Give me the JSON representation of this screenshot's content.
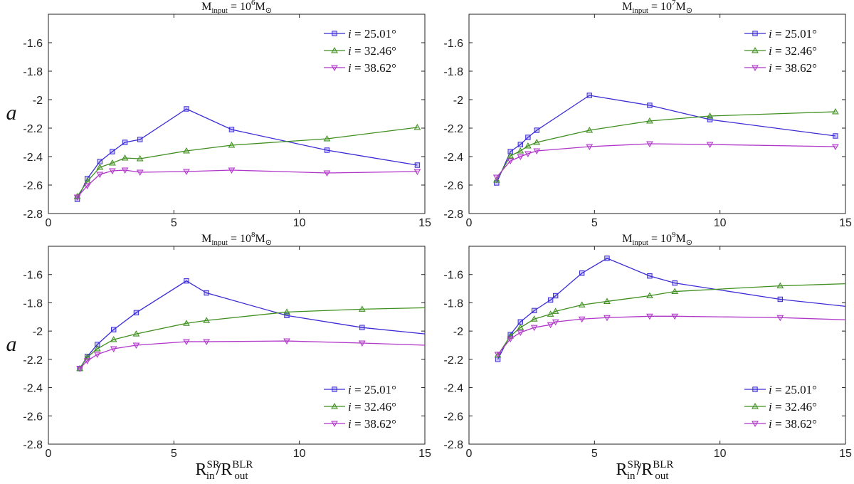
{
  "chart_data": [
    {
      "type": "line",
      "title": {
        "prefix": "M",
        "sub": "input",
        "eq": " = 10",
        "sup": "6",
        "unit": "M",
        "unit_sub": "⊙"
      },
      "ylabel": "a",
      "xlabel": {
        "num": "R",
        "num_sub": "in",
        "num_sup": "SR",
        "sep": "/",
        "den": "R",
        "den_sub": "out",
        "den_sup": "BLR"
      },
      "show_xlabel": false,
      "xlim": [
        0,
        15
      ],
      "ylim": [
        -2.8,
        -1.4
      ],
      "xticks": [
        "0",
        "5",
        "10",
        "15"
      ],
      "yticks": [
        "-2.8",
        "-2.6",
        "-2.4",
        "-2.2",
        "-2",
        "-1.8",
        "-1.6"
      ],
      "legend_position": "top-right",
      "series": [
        {
          "name": "i = 25.01°",
          "symbol": "i",
          "label": " = 25.01°",
          "color": "#3b2bd6",
          "marker": "square",
          "x": [
            1.15,
            1.55,
            2.05,
            2.55,
            3.05,
            3.65,
            5.5,
            7.3,
            11.1,
            14.7
          ],
          "y": [
            -2.7,
            -2.555,
            -2.435,
            -2.365,
            -2.3,
            -2.28,
            -2.065,
            -2.21,
            -2.355,
            -2.46
          ]
        },
        {
          "name": "i = 32.46°",
          "symbol": "i",
          "label": " = 32.46°",
          "color": "#3f8f1f",
          "marker": "triangle-up",
          "x": [
            1.15,
            1.55,
            2.05,
            2.55,
            3.05,
            3.65,
            5.5,
            7.3,
            11.1,
            14.7
          ],
          "y": [
            -2.68,
            -2.575,
            -2.475,
            -2.445,
            -2.41,
            -2.415,
            -2.36,
            -2.32,
            -2.275,
            -2.195
          ]
        },
        {
          "name": "i = 38.62°",
          "symbol": "i",
          "label": " = 38.62°",
          "color": "#b035c9",
          "marker": "triangle-down",
          "x": [
            1.15,
            1.55,
            2.05,
            2.55,
            3.05,
            3.65,
            5.5,
            7.3,
            11.1,
            14.7
          ],
          "y": [
            -2.685,
            -2.605,
            -2.525,
            -2.5,
            -2.495,
            -2.51,
            -2.505,
            -2.495,
            -2.515,
            -2.505
          ]
        }
      ]
    },
    {
      "type": "line",
      "title": {
        "prefix": "M",
        "sub": "input",
        "eq": " = 10",
        "sup": "7",
        "unit": "M",
        "unit_sub": "⊙"
      },
      "ylabel": "",
      "xlabel": {
        "num": "R",
        "num_sub": "in",
        "num_sup": "SR",
        "sep": "/",
        "den": "R",
        "den_sub": "out",
        "den_sup": "BLR"
      },
      "show_xlabel": false,
      "xlim": [
        0,
        15
      ],
      "ylim": [
        -2.8,
        -1.4
      ],
      "xticks": [
        "0",
        "5",
        "10",
        "15"
      ],
      "yticks": [
        "-2.8",
        "-2.6",
        "-2.4",
        "-2.2",
        "-2",
        "-1.8",
        "-1.6"
      ],
      "legend_position": "top-right",
      "series": [
        {
          "name": "i = 25.01°",
          "symbol": "i",
          "label": " = 25.01°",
          "color": "#3b2bd6",
          "marker": "square",
          "x": [
            1.1,
            1.65,
            2.05,
            2.35,
            2.7,
            4.8,
            7.2,
            9.6,
            14.6
          ],
          "y": [
            -2.585,
            -2.365,
            -2.315,
            -2.265,
            -2.215,
            -1.97,
            -2.04,
            -2.14,
            -2.255
          ]
        },
        {
          "name": "i = 32.46°",
          "symbol": "i",
          "label": " = 32.46°",
          "color": "#3f8f1f",
          "marker": "triangle-up",
          "x": [
            1.1,
            1.65,
            2.05,
            2.35,
            2.7,
            4.8,
            7.2,
            9.6,
            14.6
          ],
          "y": [
            -2.565,
            -2.395,
            -2.36,
            -2.325,
            -2.3,
            -2.215,
            -2.15,
            -2.115,
            -2.085
          ]
        },
        {
          "name": "i = 38.62°",
          "symbol": "i",
          "label": " = 38.62°",
          "color": "#b035c9",
          "marker": "triangle-down",
          "x": [
            1.1,
            1.65,
            2.05,
            2.35,
            2.7,
            4.8,
            7.2,
            9.6,
            14.6
          ],
          "y": [
            -2.545,
            -2.43,
            -2.4,
            -2.38,
            -2.36,
            -2.33,
            -2.31,
            -2.315,
            -2.33
          ]
        }
      ]
    },
    {
      "type": "line",
      "title": {
        "prefix": "M",
        "sub": "input",
        "eq": " = 10",
        "sup": "8",
        "unit": "M",
        "unit_sub": "⊙"
      },
      "ylabel": "a",
      "xlabel": {
        "num": "R",
        "num_sub": "in",
        "num_sup": "SR",
        "sep": "/",
        "den": "R",
        "den_sub": "out",
        "den_sup": "BLR"
      },
      "show_xlabel": true,
      "xlim": [
        0,
        15
      ],
      "ylim": [
        -2.8,
        -1.4
      ],
      "xticks": [
        "0",
        "5",
        "10",
        "15"
      ],
      "yticks": [
        "-2.8",
        "-2.6",
        "-2.4",
        "-2.2",
        "-2",
        "-1.8",
        "-1.6"
      ],
      "legend_position": "bottom-right",
      "series": [
        {
          "name": "i = 25.01°",
          "symbol": "i",
          "label": " = 25.01°",
          "color": "#3b2bd6",
          "marker": "square",
          "x": [
            1.25,
            1.55,
            1.95,
            2.6,
            3.5,
            5.5,
            6.3,
            9.5,
            12.5,
            15.0
          ],
          "y": [
            -2.265,
            -2.18,
            -2.095,
            -1.99,
            -1.87,
            -1.645,
            -1.73,
            -1.89,
            -1.975,
            -2.02
          ]
        },
        {
          "name": "i = 32.46°",
          "symbol": "i",
          "label": " = 32.46°",
          "color": "#3f8f1f",
          "marker": "triangle-up",
          "x": [
            1.25,
            1.55,
            1.95,
            2.6,
            3.5,
            5.5,
            6.3,
            9.5,
            12.5,
            15.0
          ],
          "y": [
            -2.265,
            -2.185,
            -2.125,
            -2.06,
            -2.02,
            -1.945,
            -1.925,
            -1.865,
            -1.845,
            -1.835
          ]
        },
        {
          "name": "i = 38.62°",
          "symbol": "i",
          "label": " = 38.62°",
          "color": "#b035c9",
          "marker": "triangle-down",
          "x": [
            1.25,
            1.55,
            1.95,
            2.6,
            3.5,
            5.5,
            6.3,
            9.5,
            12.5,
            15.0
          ],
          "y": [
            -2.265,
            -2.21,
            -2.165,
            -2.125,
            -2.1,
            -2.075,
            -2.075,
            -2.07,
            -2.085,
            -2.1
          ]
        }
      ]
    },
    {
      "type": "line",
      "title": {
        "prefix": "M",
        "sub": "input",
        "eq": " = 10",
        "sup": "9",
        "unit": "M",
        "unit_sub": "⊙"
      },
      "ylabel": "",
      "xlabel": {
        "num": "R",
        "num_sub": "in",
        "num_sup": "SR",
        "sep": "/",
        "den": "R",
        "den_sub": "out",
        "den_sup": "BLR"
      },
      "show_xlabel": true,
      "xlim": [
        0,
        15
      ],
      "ylim": [
        -2.8,
        -1.4
      ],
      "xticks": [
        "0",
        "5",
        "10",
        "15"
      ],
      "yticks": [
        "-2.8",
        "-2.6",
        "-2.4",
        "-2.2",
        "-2",
        "-1.8",
        "-1.6"
      ],
      "legend_position": "bottom-right",
      "series": [
        {
          "name": "i = 25.01°",
          "symbol": "i",
          "label": " = 25.01°",
          "color": "#3b2bd6",
          "marker": "square",
          "x": [
            1.15,
            1.65,
            2.05,
            2.6,
            3.25,
            3.45,
            4.5,
            5.5,
            7.2,
            8.2,
            12.4,
            15.0
          ],
          "y": [
            -2.2,
            -2.025,
            -1.935,
            -1.855,
            -1.78,
            -1.75,
            -1.59,
            -1.485,
            -1.61,
            -1.66,
            -1.775,
            -1.825
          ]
        },
        {
          "name": "i = 32.46°",
          "symbol": "i",
          "label": " = 32.46°",
          "color": "#3f8f1f",
          "marker": "triangle-up",
          "x": [
            1.15,
            1.65,
            2.05,
            2.6,
            3.25,
            3.45,
            4.5,
            5.5,
            7.2,
            8.2,
            12.4,
            15.0
          ],
          "y": [
            -2.17,
            -2.035,
            -1.975,
            -1.915,
            -1.88,
            -1.86,
            -1.815,
            -1.79,
            -1.75,
            -1.72,
            -1.68,
            -1.665
          ]
        },
        {
          "name": "i = 38.62°",
          "symbol": "i",
          "label": " = 38.62°",
          "color": "#b035c9",
          "marker": "triangle-down",
          "x": [
            1.15,
            1.65,
            2.05,
            2.6,
            3.25,
            3.45,
            4.5,
            5.5,
            7.2,
            8.2,
            12.4,
            15.0
          ],
          "y": [
            -2.165,
            -2.055,
            -2.01,
            -1.975,
            -1.955,
            -1.935,
            -1.915,
            -1.905,
            -1.895,
            -1.895,
            -1.905,
            -1.92
          ]
        }
      ]
    }
  ]
}
